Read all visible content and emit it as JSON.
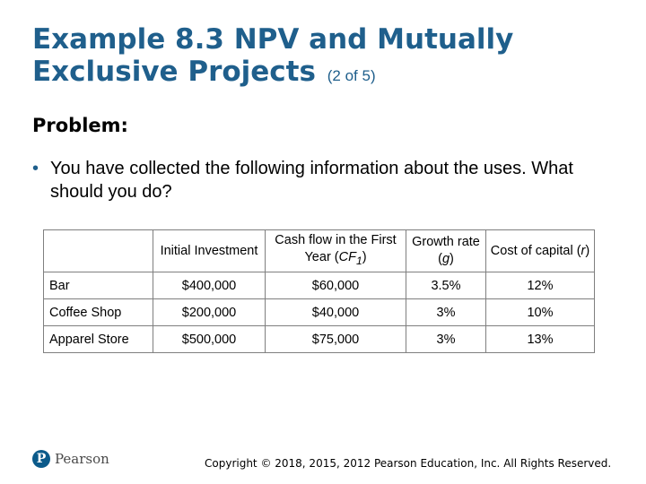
{
  "slide": {
    "title": "Example 8.3 NPV and Mutually Exclusive Projects",
    "title_suffix": "(2 of 5)",
    "problem_heading": "Problem:",
    "bullet_text": "You have collected the following information about the uses. What should you do?"
  },
  "table": {
    "headers": {
      "col1": "",
      "col2": "Initial Investment",
      "col3_pre": "Cash flow in the First Year (",
      "col3_var": "CF",
      "col3_sub": "1",
      "col3_post": ")",
      "col4_pre": "Growth rate (",
      "col4_var": "g",
      "col4_post": ")",
      "col5_pre": "Cost of capital (",
      "col5_var": "r",
      "col5_post": ")"
    },
    "rows": [
      {
        "name": "Bar",
        "investment": "$400,000",
        "cash_flow": "$60,000",
        "growth": "3.5%",
        "cost": "12%"
      },
      {
        "name": "Coffee Shop",
        "investment": "$200,000",
        "cash_flow": "$40,000",
        "growth": "3%",
        "cost": "10%"
      },
      {
        "name": "Apparel Store",
        "investment": "$500,000",
        "cash_flow": "$75,000",
        "growth": "3%",
        "cost": "13%"
      }
    ]
  },
  "footer": {
    "logo_mark": "P",
    "logo_text": "Pearson",
    "copyright": "Copyright © 2018, 2015, 2012 Pearson Education, Inc. All Rights Reserved."
  },
  "colors": {
    "title": "#1f5f8c",
    "table_border": "#7f7f7f",
    "logo": "#0b5a8a"
  }
}
